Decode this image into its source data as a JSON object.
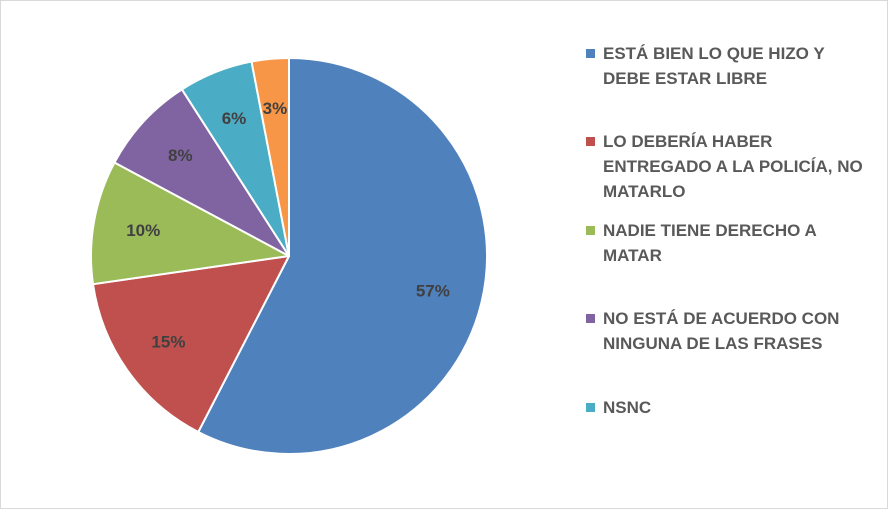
{
  "chart_data": {
    "type": "pie",
    "title": "",
    "slices": [
      {
        "label": "ESTÁ BIEN LO QUE HIZO Y DEBE ESTAR LIBRE",
        "value": 57,
        "value_label": "57%",
        "color": "#4F81BD"
      },
      {
        "label": "LO DEBERÍA HABER ENTREGADO A LA POLICÍA, NO MATARLO",
        "value": 15,
        "value_label": "15%",
        "color": "#C0504D"
      },
      {
        "label": "NADIE TIENE DERECHO A MATAR",
        "value": 10,
        "value_label": "10%",
        "color": "#9BBB59"
      },
      {
        "label": "NO ESTÁ DE ACUERDO CON NINGUNA DE LAS FRASES",
        "value": 8,
        "value_label": "8%",
        "color": "#8064A2"
      },
      {
        "label": "NSNC",
        "value": 6,
        "value_label": "6%",
        "color": "#4BACC6"
      },
      {
        "label": "",
        "value": 3,
        "value_label": "3%",
        "color": "#F79646"
      }
    ],
    "legend_position": "right"
  }
}
